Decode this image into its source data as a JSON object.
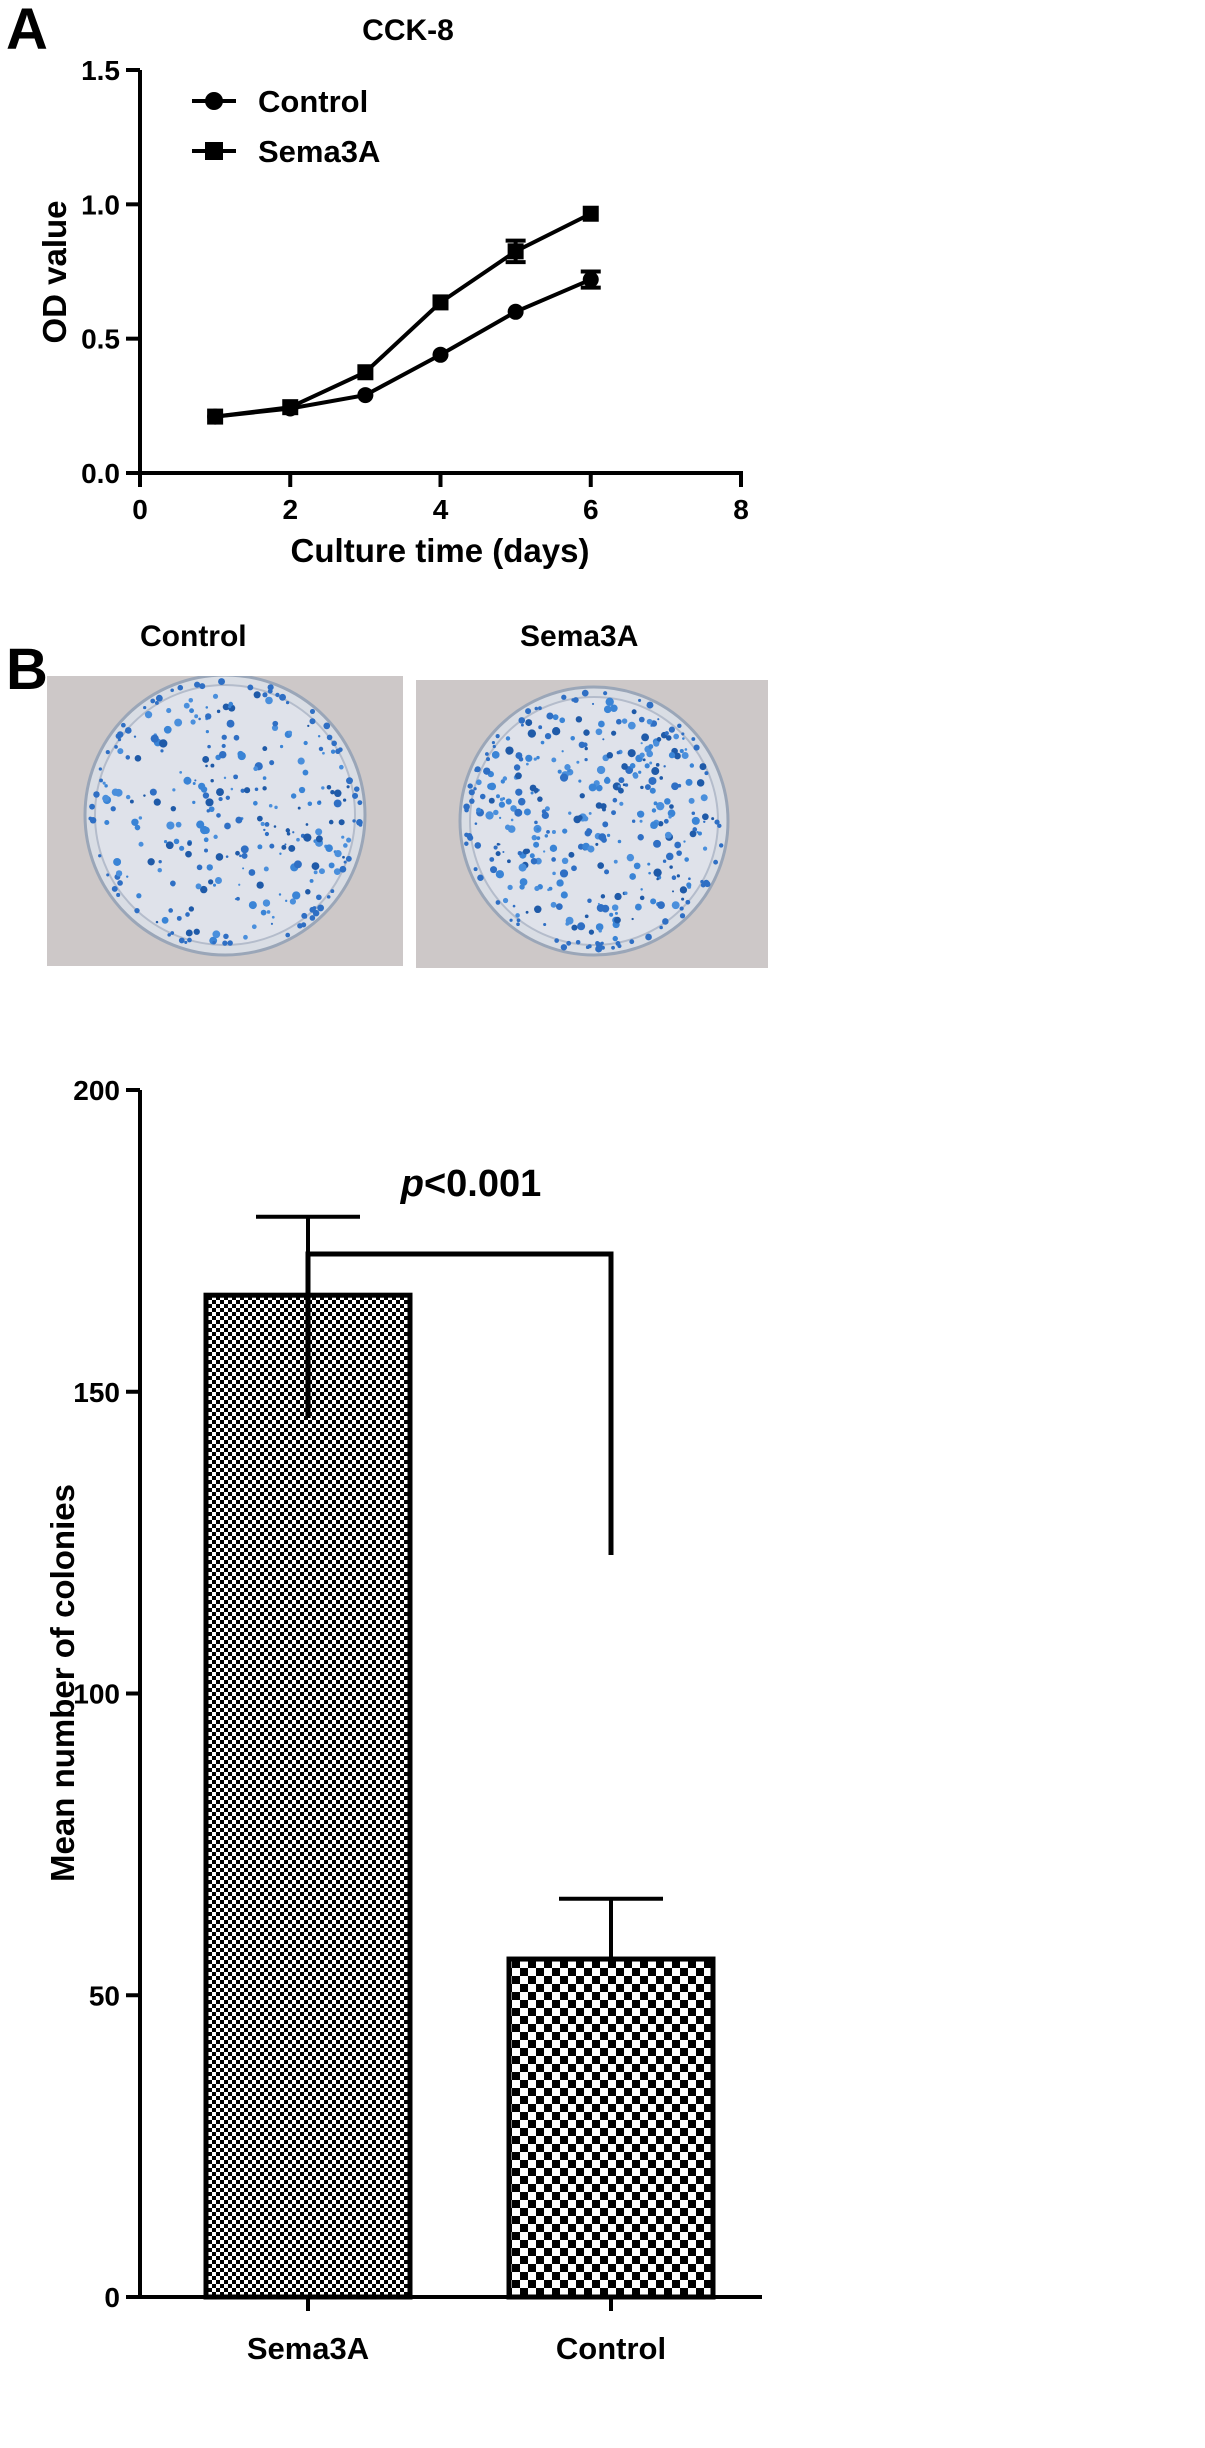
{
  "panel_a": {
    "label": "A"
  },
  "panel_b": {
    "label": "B"
  },
  "photos": {
    "left_caption": "Control",
    "right_caption": "Sema3A"
  },
  "colors": {
    "ink": "#000000",
    "background": "#ffffff",
    "plate_background": "#cdc8c8",
    "colony_blue": "#2f6fc4"
  },
  "chart_data": [
    {
      "type": "line",
      "title": "CCK-8",
      "xlabel": "Culture time (days)",
      "ylabel": "OD value",
      "xlim": [
        0,
        8
      ],
      "ylim": [
        0,
        1.5
      ],
      "xticks": [
        "0",
        "2",
        "4",
        "6",
        "8"
      ],
      "yticks": [
        "0.0",
        "0.5",
        "1.0",
        "1.5"
      ],
      "legend_position": "top-left",
      "x": [
        1,
        2,
        3,
        4,
        5,
        6
      ],
      "series": [
        {
          "name": "Control",
          "marker": "circle",
          "values": [
            0.21,
            0.24,
            0.29,
            0.44,
            0.6,
            0.72
          ],
          "errors": [
            0.01,
            0.01,
            0.01,
            0.01,
            0.01,
            0.03
          ]
        },
        {
          "name": "Sema3A",
          "marker": "square",
          "values": [
            0.21,
            0.245,
            0.375,
            0.635,
            0.825,
            0.965
          ],
          "errors": [
            0.01,
            0.01,
            0.01,
            0.01,
            0.04,
            0.01
          ]
        }
      ]
    },
    {
      "type": "bar",
      "categories": [
        "Sema3A",
        "Control"
      ],
      "values": [
        166,
        56
      ],
      "errors": [
        13,
        10
      ],
      "ylabel": "Mean number of colonies",
      "ylim": [
        0,
        200
      ],
      "yticks": [
        "0",
        "50",
        "100",
        "150",
        "200"
      ],
      "significance": {
        "p": "p",
        "rest": "<0.001"
      }
    }
  ]
}
